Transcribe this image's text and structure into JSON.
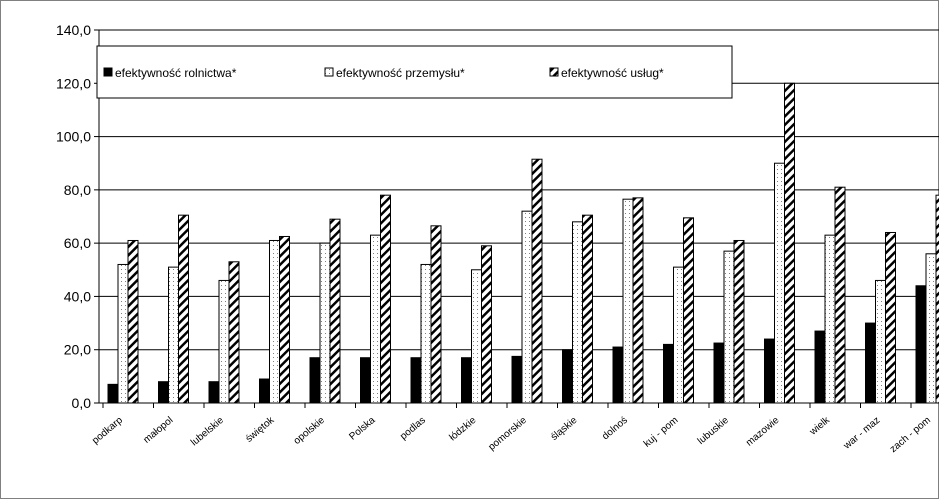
{
  "chart_data": {
    "type": "bar",
    "ylim": [
      0,
      140
    ],
    "y_ticks": [
      "0,0",
      "20,0",
      "40,0",
      "60,0",
      "80,0",
      "100,0",
      "120,0",
      "140,0"
    ],
    "grid": true,
    "legend_position": "top-left",
    "categories": [
      "podkarp",
      "małopol",
      "lubelskie",
      "świętok",
      "opolskie",
      "Polska",
      "podlas",
      "łódzkie",
      "pomorskie",
      "śląskie",
      "dolnoś",
      "kuj - pom",
      "lubuskie",
      "mazowie",
      "wielk",
      "war - maz",
      "zach - pom"
    ],
    "series": [
      {
        "name": "efektywność rolnictwa*",
        "pattern": "solid-black",
        "values": [
          7,
          8,
          8,
          9,
          17,
          17,
          17,
          17,
          17.5,
          20,
          21,
          22,
          22.5,
          24,
          27,
          30,
          44
        ]
      },
      {
        "name": "efektywność przemysłu*",
        "pattern": "dotted",
        "values": [
          52,
          51,
          46,
          61,
          60,
          63,
          52,
          50,
          72,
          68,
          76.5,
          51,
          57,
          90,
          63,
          46,
          56
        ]
      },
      {
        "name": "efektywność usług*",
        "pattern": "diagonal-hatch",
        "values": [
          61,
          70.5,
          53,
          62.5,
          69,
          78,
          66.5,
          59,
          91.5,
          70.5,
          77,
          69.5,
          61,
          120,
          81,
          64,
          78
        ]
      }
    ],
    "colors": {
      "series1": "#000000",
      "series2_dots": "#808080",
      "series3_hatch": "#000000",
      "grid": "#000000"
    }
  }
}
